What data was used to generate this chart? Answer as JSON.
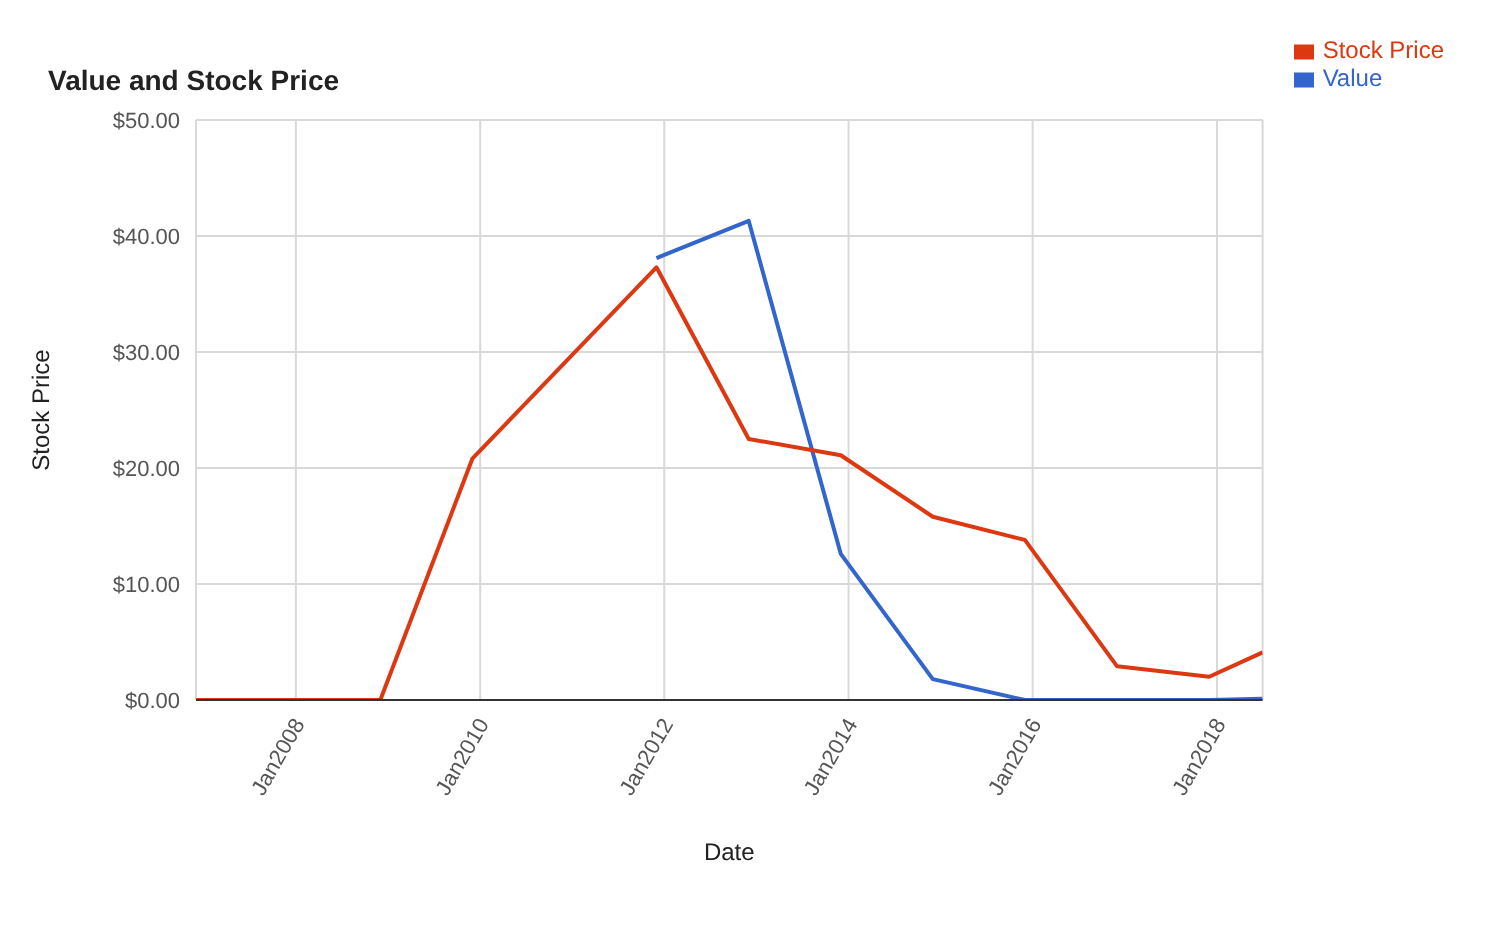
{
  "chart_data": {
    "type": "line",
    "title": "Value and Stock Price",
    "xlabel": "Date",
    "ylabel": "Stock Price",
    "x": [
      "2006-12",
      "2007-12",
      "2008-12",
      "2009-12",
      "2011-12",
      "2012-12",
      "2013-12",
      "2014-12",
      "2015-12",
      "2016-12",
      "2017-12",
      "2018-07"
    ],
    "series": [
      {
        "name": "Value",
        "color": "#3366cc",
        "values": [
          null,
          null,
          null,
          null,
          38.1,
          41.3,
          12.6,
          1.8,
          0,
          0,
          0,
          0.1
        ]
      },
      {
        "name": "Stock Price",
        "color": "#dc3912",
        "values": [
          0,
          0,
          0,
          20.8,
          37.3,
          22.5,
          21.1,
          15.8,
          13.8,
          2.9,
          2.0,
          4.1
        ]
      }
    ],
    "xlim": [
      "2006-12",
      "2018-07"
    ],
    "xticks": [
      {
        "value": "2008-01",
        "label": "Jan2008"
      },
      {
        "value": "2010-01",
        "label": "Jan2010"
      },
      {
        "value": "2012-01",
        "label": "Jan2012"
      },
      {
        "value": "2014-01",
        "label": "Jan2014"
      },
      {
        "value": "2016-01",
        "label": "Jan2016"
      },
      {
        "value": "2018-01",
        "label": "Jan2018"
      }
    ],
    "ylim": [
      0,
      50
    ],
    "yticks": [
      {
        "value": 0,
        "label": "$0.00"
      },
      {
        "value": 10,
        "label": "$10.00"
      },
      {
        "value": 20,
        "label": "$20.00"
      },
      {
        "value": 30,
        "label": "$30.00"
      },
      {
        "value": 40,
        "label": "$40.00"
      },
      {
        "value": 50,
        "label": "$50.00"
      }
    ],
    "grid": true,
    "legend": "top right",
    "marker": "none",
    "line_style": "solid"
  }
}
